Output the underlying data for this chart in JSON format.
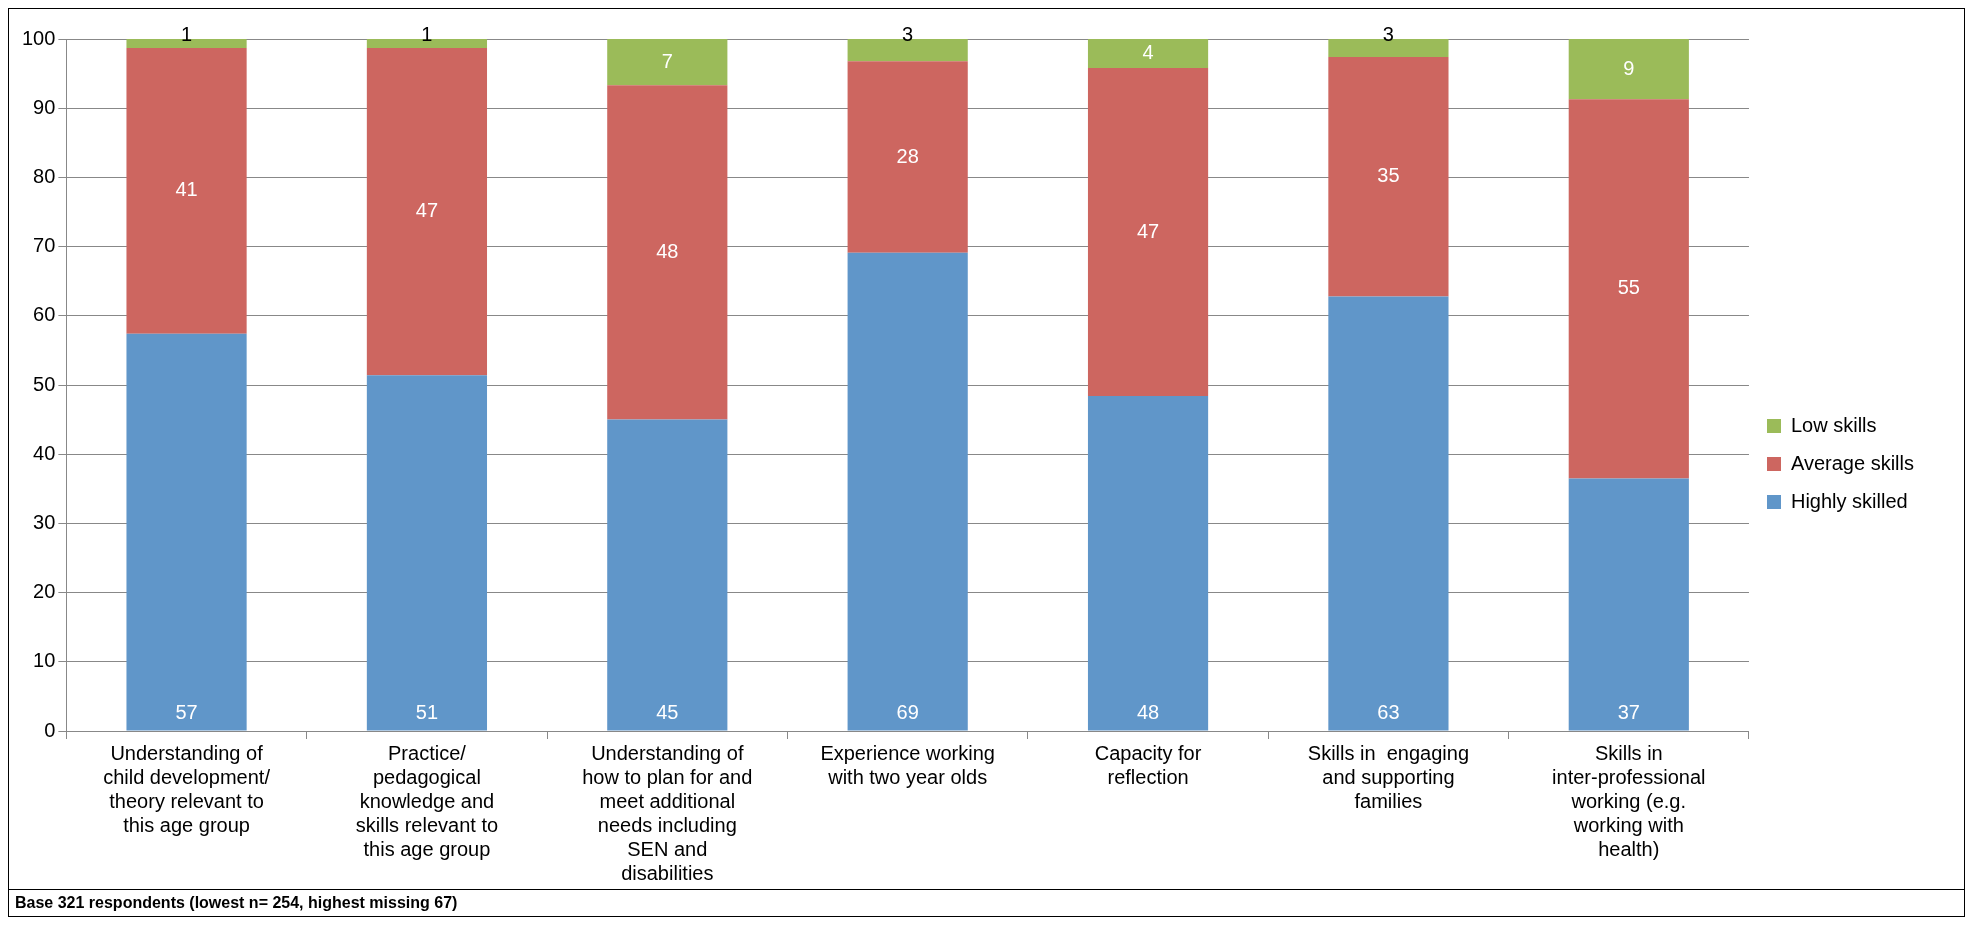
{
  "chart_data": {
    "type": "bar",
    "stacked": true,
    "categories": [
      "Understanding of child development/ theory relevant to this age group",
      "Practice/ pedagogical knowledge and skills relevant to this age group",
      "Understanding of how to plan for and meet additional needs including SEN and disabilities",
      "Experience working with two year olds",
      "Capacity for reflection",
      "Skills in  engaging and supporting families",
      "Skills in inter-professional working (e.g. working with health)"
    ],
    "series": [
      {
        "name": "Highly skilled",
        "color": "#6096c9",
        "values": [
          57.4,
          51.4,
          45.0,
          69.1,
          48.4,
          62.8,
          36.5
        ],
        "value_labels": [
          "57",
          "51",
          "45",
          "69",
          "48",
          "63",
          "37"
        ]
      },
      {
        "name": "Average skills",
        "color": "#cd6660",
        "values": [
          41.3,
          47.3,
          48.3,
          27.7,
          47.4,
          34.6,
          54.8
        ],
        "value_labels": [
          "41",
          "47",
          "48",
          "28",
          "47",
          "35",
          "55"
        ]
      },
      {
        "name": "Low skills",
        "color": "#9bbb59",
        "values": [
          1.3,
          1.3,
          6.7,
          3.2,
          4.2,
          2.6,
          8.7
        ],
        "value_labels": [
          "1",
          "1",
          "7",
          "3",
          "4",
          "3",
          "9"
        ]
      }
    ],
    "ylim": [
      0,
      100
    ],
    "yticks": [
      0,
      10,
      20,
      30,
      40,
      50,
      60,
      70,
      80,
      90,
      100
    ],
    "grid": "y",
    "legend": "right",
    "annotations": [
      "Base 321 respondents (lowest n= 254, highest missing 67)"
    ]
  }
}
